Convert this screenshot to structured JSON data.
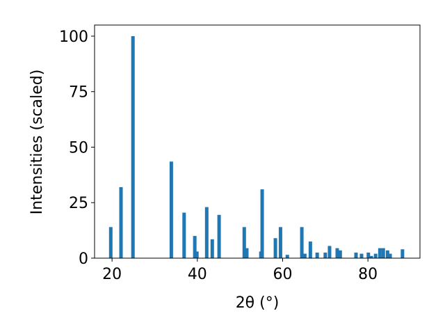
{
  "chart_data": {
    "type": "bar",
    "x_label": "2θ (°)",
    "y_label": "Intensities (scaled)",
    "x": [
      19.7,
      22.1,
      24.9,
      33.9,
      36.9,
      39.4,
      39.9,
      42.2,
      43.5,
      45.1,
      51.0,
      51.6,
      54.9,
      55.2,
      58.3,
      59.5,
      61.1,
      64.5,
      65.2,
      66.5,
      68.1,
      70.0,
      71.0,
      72.8,
      73.5,
      77.2,
      78.5,
      80.1,
      80.8,
      81.8,
      82.8,
      83.6,
      84.6,
      85.2,
      88.1
    ],
    "values": [
      14,
      32,
      100,
      43.5,
      20.5,
      10,
      3,
      23,
      8.5,
      19.5,
      14,
      4.5,
      3,
      31,
      9,
      14,
      1.5,
      14,
      2,
      7.5,
      2.5,
      2.5,
      5.5,
      4.5,
      3.5,
      2.5,
      2,
      2.5,
      1,
      2,
      4.5,
      4.5,
      3.5,
      2,
      4
    ],
    "color": "#1f77b4",
    "xlim": [
      15.9,
      92.2
    ],
    "xticks": [
      20,
      40,
      60,
      80
    ],
    "ylim": [
      0,
      105
    ],
    "yticks": [
      0,
      25,
      50,
      75,
      100
    ]
  }
}
